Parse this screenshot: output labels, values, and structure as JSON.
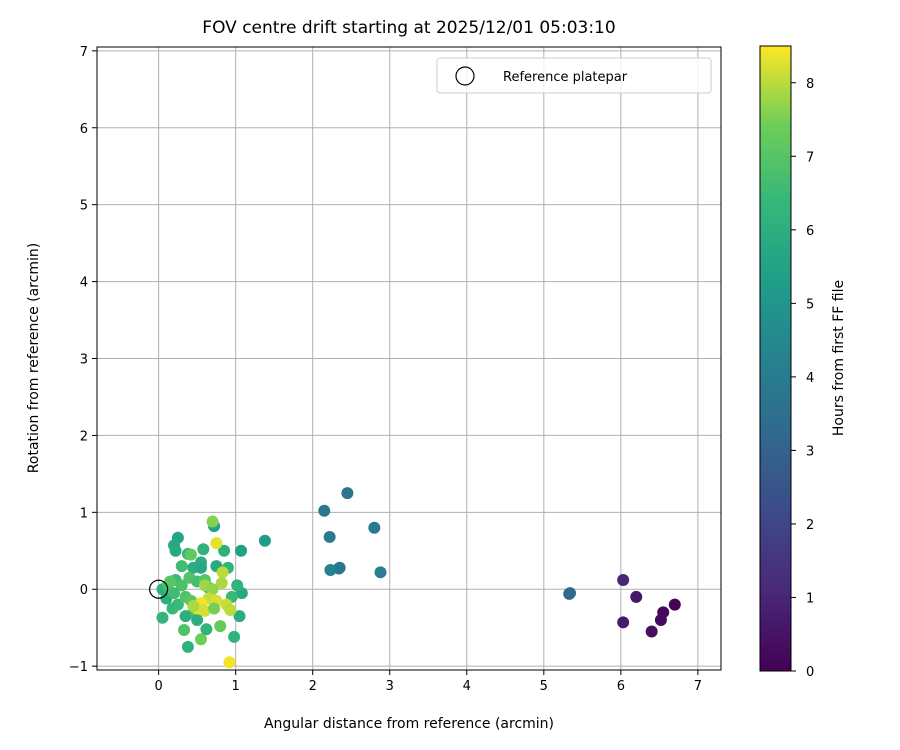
{
  "chart_data": {
    "type": "scatter",
    "title": "FOV centre drift starting at 2025/12/01 05:03:10",
    "xlabel": "Angular distance from reference (arcmin)",
    "ylabel": "Rotation from reference (arcmin)",
    "xlim": [
      -0.8,
      7.3
    ],
    "ylim": [
      -1.05,
      7.05
    ],
    "xticks": [
      0,
      1,
      2,
      3,
      4,
      5,
      6,
      7
    ],
    "yticks": [
      -1,
      0,
      1,
      2,
      3,
      4,
      5,
      6,
      7
    ],
    "grid": true,
    "legend": {
      "location": "top-right",
      "entries": [
        "Reference platepar"
      ]
    },
    "reference_point": {
      "x": 0,
      "y": 0,
      "label": "Reference platepar"
    },
    "colorbar": {
      "label": "Hours from first FF file",
      "colormap": "viridis",
      "range": [
        0,
        8.5
      ],
      "ticks": [
        0,
        1,
        2,
        3,
        4,
        5,
        6,
        7,
        8
      ]
    },
    "points": [
      {
        "x": 6.7,
        "y": -0.2,
        "h": 0.1
      },
      {
        "x": 6.55,
        "y": -0.3,
        "h": 0.2
      },
      {
        "x": 6.52,
        "y": -0.4,
        "h": 0.3
      },
      {
        "x": 6.4,
        "y": -0.55,
        "h": 0.4
      },
      {
        "x": 6.2,
        "y": -0.1,
        "h": 0.6
      },
      {
        "x": 6.03,
        "y": -0.43,
        "h": 0.7
      },
      {
        "x": 6.03,
        "y": 0.12,
        "h": 1.0
      },
      {
        "x": 5.33,
        "y": -0.06,
        "h": 3.0
      },
      {
        "x": 5.34,
        "y": -0.05,
        "h": 3.2
      },
      {
        "x": 2.45,
        "y": 1.25,
        "h": 3.7
      },
      {
        "x": 2.15,
        "y": 1.02,
        "h": 3.8
      },
      {
        "x": 2.8,
        "y": 0.8,
        "h": 3.9
      },
      {
        "x": 2.22,
        "y": 0.68,
        "h": 4.0
      },
      {
        "x": 2.35,
        "y": 0.28,
        "h": 4.1
      },
      {
        "x": 2.34,
        "y": 0.27,
        "h": 3.6
      },
      {
        "x": 2.88,
        "y": 0.22,
        "h": 4.2
      },
      {
        "x": 2.23,
        "y": 0.25,
        "h": 4.3
      },
      {
        "x": 1.38,
        "y": 0.63,
        "h": 5.3
      },
      {
        "x": 1.07,
        "y": 0.5,
        "h": 5.4
      },
      {
        "x": 0.25,
        "y": 0.67,
        "h": 5.6
      },
      {
        "x": 0.2,
        "y": 0.57,
        "h": 5.7
      },
      {
        "x": 0.22,
        "y": 0.5,
        "h": 5.8
      },
      {
        "x": 0.72,
        "y": 0.82,
        "h": 5.5
      },
      {
        "x": 0.58,
        "y": 0.52,
        "h": 6.2
      },
      {
        "x": 0.85,
        "y": 0.5,
        "h": 6.1
      },
      {
        "x": 0.38,
        "y": 0.46,
        "h": 6.4
      },
      {
        "x": 0.55,
        "y": 0.35,
        "h": 5.9
      },
      {
        "x": 0.3,
        "y": 0.3,
        "h": 6.6
      },
      {
        "x": 0.45,
        "y": 0.28,
        "h": 6.0
      },
      {
        "x": 0.55,
        "y": 0.28,
        "h": 5.7
      },
      {
        "x": 0.75,
        "y": 0.3,
        "h": 5.8
      },
      {
        "x": 0.9,
        "y": 0.28,
        "h": 6.3
      },
      {
        "x": 0.22,
        "y": 0.12,
        "h": 6.5
      },
      {
        "x": 0.3,
        "y": 0.05,
        "h": 6.8
      },
      {
        "x": 0.4,
        "y": 0.15,
        "h": 6.9
      },
      {
        "x": 0.5,
        "y": 0.1,
        "h": 6.7
      },
      {
        "x": 0.6,
        "y": 0.12,
        "h": 7.0
      },
      {
        "x": 0.65,
        "y": 0.02,
        "h": 6.2
      },
      {
        "x": 0.05,
        "y": 0.0,
        "h": 6.1
      },
      {
        "x": 0.1,
        "y": -0.12,
        "h": 6.0
      },
      {
        "x": 0.12,
        "y": 0.05,
        "h": 6.7
      },
      {
        "x": 0.2,
        "y": -0.05,
        "h": 6.6
      },
      {
        "x": 0.25,
        "y": -0.2,
        "h": 6.5
      },
      {
        "x": 0.35,
        "y": -0.1,
        "h": 6.9
      },
      {
        "x": 0.42,
        "y": -0.15,
        "h": 7.1
      },
      {
        "x": 0.45,
        "y": -0.3,
        "h": 6.8
      },
      {
        "x": 0.35,
        "y": -0.35,
        "h": 6.0
      },
      {
        "x": 0.05,
        "y": -0.37,
        "h": 6.3
      },
      {
        "x": 0.18,
        "y": -0.25,
        "h": 6.4
      },
      {
        "x": 0.33,
        "y": -0.53,
        "h": 6.9
      },
      {
        "x": 0.38,
        "y": -0.75,
        "h": 6.1
      },
      {
        "x": 0.5,
        "y": -0.4,
        "h": 6.0
      },
      {
        "x": 0.55,
        "y": -0.65,
        "h": 7.4
      },
      {
        "x": 0.62,
        "y": -0.52,
        "h": 6.3
      },
      {
        "x": 0.8,
        "y": -0.48,
        "h": 7.3
      },
      {
        "x": 0.98,
        "y": -0.62,
        "h": 6.2
      },
      {
        "x": 1.05,
        "y": -0.35,
        "h": 5.9
      },
      {
        "x": 1.08,
        "y": -0.05,
        "h": 5.8
      },
      {
        "x": 1.02,
        "y": 0.05,
        "h": 6.2
      },
      {
        "x": 0.95,
        "y": -0.1,
        "h": 6.4
      },
      {
        "x": 0.7,
        "y": 0.88,
        "h": 7.6
      },
      {
        "x": 0.75,
        "y": 0.6,
        "h": 8.3
      },
      {
        "x": 0.83,
        "y": 0.22,
        "h": 8.0
      },
      {
        "x": 0.82,
        "y": 0.08,
        "h": 7.9
      },
      {
        "x": 0.6,
        "y": 0.05,
        "h": 7.8
      },
      {
        "x": 0.7,
        "y": 0.0,
        "h": 7.7
      },
      {
        "x": 0.65,
        "y": -0.12,
        "h": 8.1
      },
      {
        "x": 0.75,
        "y": -0.15,
        "h": 8.2
      },
      {
        "x": 0.55,
        "y": -0.18,
        "h": 8.4
      },
      {
        "x": 0.5,
        "y": -0.25,
        "h": 8.3
      },
      {
        "x": 0.6,
        "y": -0.28,
        "h": 8.2
      },
      {
        "x": 0.88,
        "y": -0.2,
        "h": 8.1
      },
      {
        "x": 0.93,
        "y": -0.27,
        "h": 8.0
      },
      {
        "x": 0.45,
        "y": -0.22,
        "h": 7.9
      },
      {
        "x": 0.72,
        "y": -0.25,
        "h": 7.5
      },
      {
        "x": 0.92,
        "y": -0.95,
        "h": 8.4
      },
      {
        "x": 0.42,
        "y": 0.45,
        "h": 7.2
      },
      {
        "x": 0.15,
        "y": 0.1,
        "h": 7.0
      }
    ]
  }
}
